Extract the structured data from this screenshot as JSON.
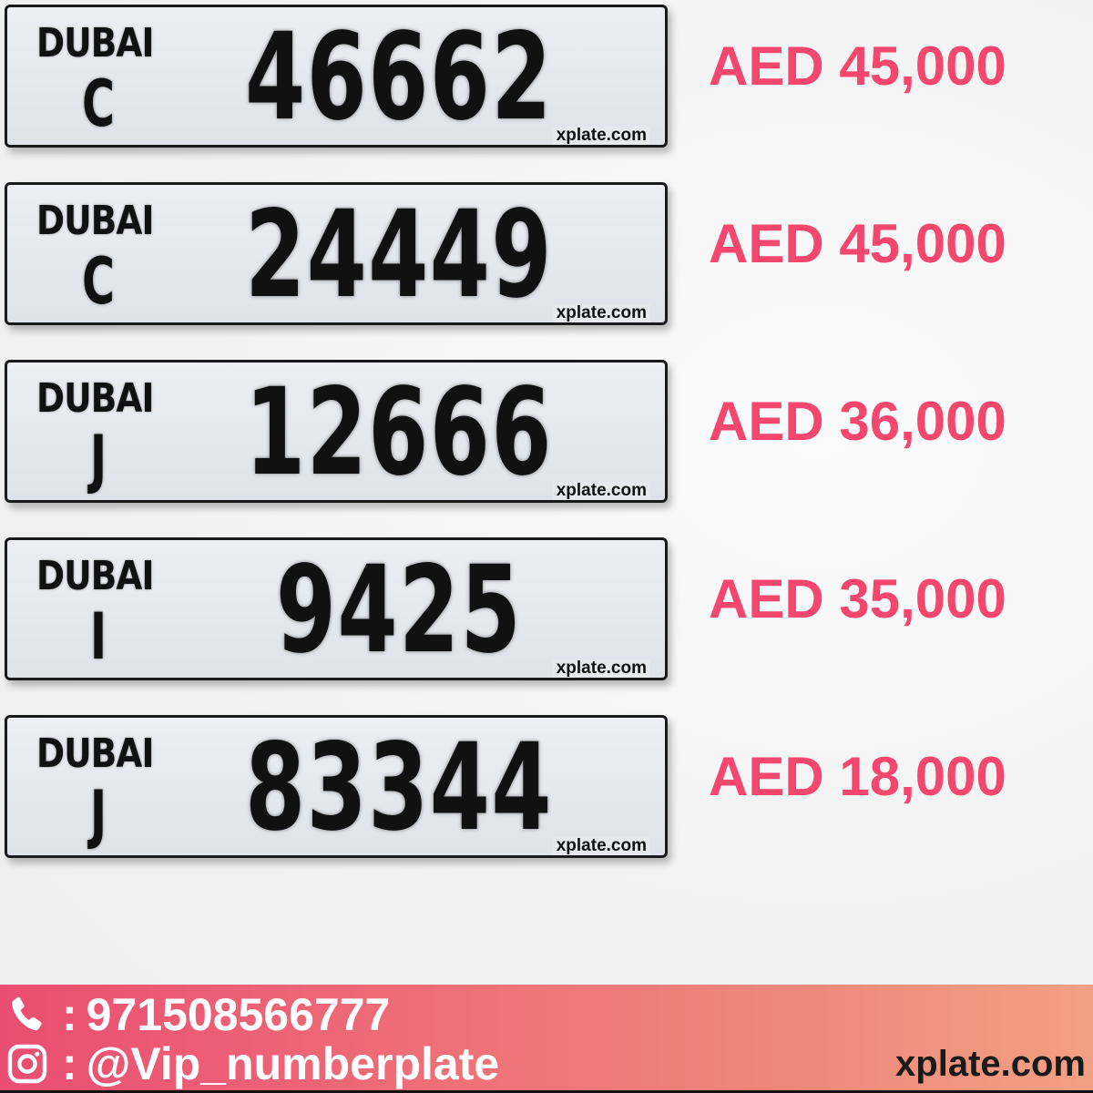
{
  "plates": [
    {
      "emirate": "DUBAI",
      "code": "C",
      "number": "46662",
      "watermark": "xplate.com",
      "price": "AED 45,000"
    },
    {
      "emirate": "DUBAI",
      "code": "C",
      "number": "24449",
      "watermark": "xplate.com",
      "price": "AED 45,000"
    },
    {
      "emirate": "DUBAI",
      "code": "J",
      "number": "12666",
      "watermark": "xplate.com",
      "price": "AED 36,000"
    },
    {
      "emirate": "DUBAI",
      "code": "I",
      "number": "9425",
      "watermark": "xplate.com",
      "price": "AED 35,000"
    },
    {
      "emirate": "DUBAI",
      "code": "J",
      "number": "83344",
      "watermark": "xplate.com",
      "price": "AED 18,000"
    }
  ],
  "footer": {
    "phone_icon": "phone-icon",
    "instagram_icon": "instagram-icon",
    "separator": ":",
    "phone": "971508566777",
    "instagram": "@Vip_numberplate",
    "site": "xplate.com"
  },
  "colors": {
    "price": "#f4476f",
    "footer_start": "#ea4d72",
    "footer_end": "#f2a083"
  }
}
